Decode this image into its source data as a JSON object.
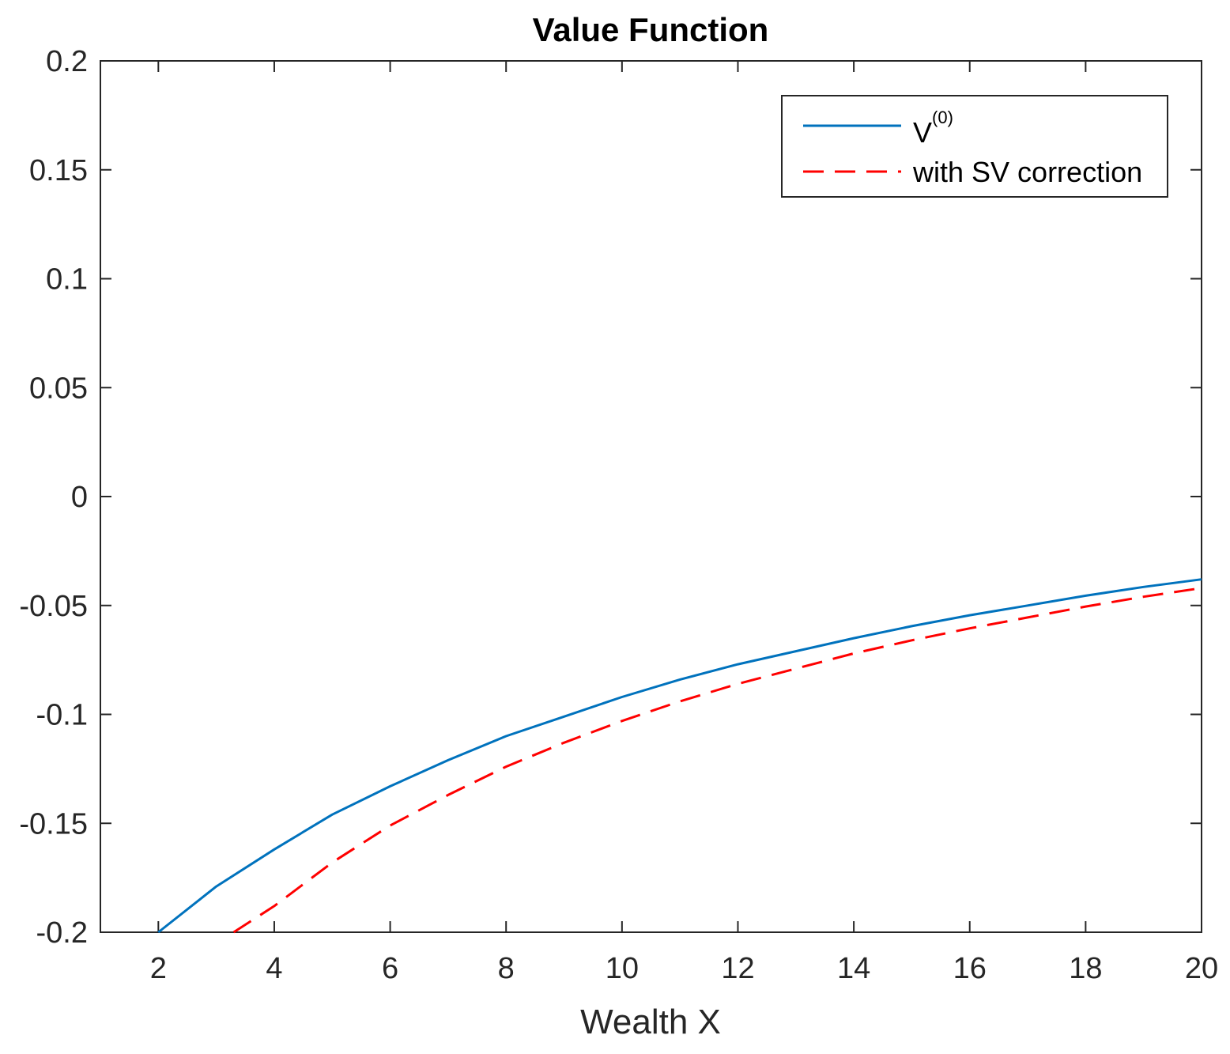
{
  "chart_data": {
    "type": "line",
    "title": "Value Function",
    "xlabel": "Wealth X",
    "ylabel": "",
    "xlim": [
      1,
      20
    ],
    "ylim": [
      -0.2,
      0.2
    ],
    "x_ticks": [
      "2",
      "4",
      "6",
      "8",
      "10",
      "12",
      "14",
      "16",
      "18",
      "20"
    ],
    "y_ticks": [
      "0.2",
      "0.15",
      "0.1",
      "0.05",
      "0",
      "-0.05",
      "-0.1",
      "-0.15",
      "-0.2"
    ],
    "x_tick_values": [
      2,
      4,
      6,
      8,
      10,
      12,
      14,
      16,
      18,
      20
    ],
    "y_tick_values": [
      0.2,
      0.15,
      0.1,
      0.05,
      0,
      -0.05,
      -0.1,
      -0.15,
      -0.2
    ],
    "grid": false,
    "legend_position": "top-right",
    "series": [
      {
        "name": "V",
        "name_superscript": "(0)",
        "color": "#0072BD",
        "style": "solid",
        "x": [
          2,
          3,
          4,
          5,
          6,
          7,
          8,
          9,
          10,
          11,
          12,
          13,
          14,
          15,
          16,
          17,
          18,
          19,
          20
        ],
        "y": [
          -0.2,
          -0.179,
          -0.162,
          -0.146,
          -0.133,
          -0.121,
          -0.11,
          -0.101,
          -0.092,
          -0.084,
          -0.077,
          -0.071,
          -0.065,
          -0.0595,
          -0.0545,
          -0.05,
          -0.0455,
          -0.0415,
          -0.038
        ]
      },
      {
        "name": "with SV correction",
        "color": "#FF0000",
        "style": "dashed",
        "x": [
          3.3,
          4,
          5,
          6,
          7,
          8,
          9,
          10,
          11,
          12,
          13,
          14,
          15,
          16,
          17,
          18,
          19,
          20
        ],
        "y": [
          -0.2,
          -0.188,
          -0.168,
          -0.151,
          -0.137,
          -0.124,
          -0.113,
          -0.103,
          -0.094,
          -0.086,
          -0.079,
          -0.072,
          -0.066,
          -0.0605,
          -0.0555,
          -0.0505,
          -0.046,
          -0.042
        ]
      }
    ]
  }
}
